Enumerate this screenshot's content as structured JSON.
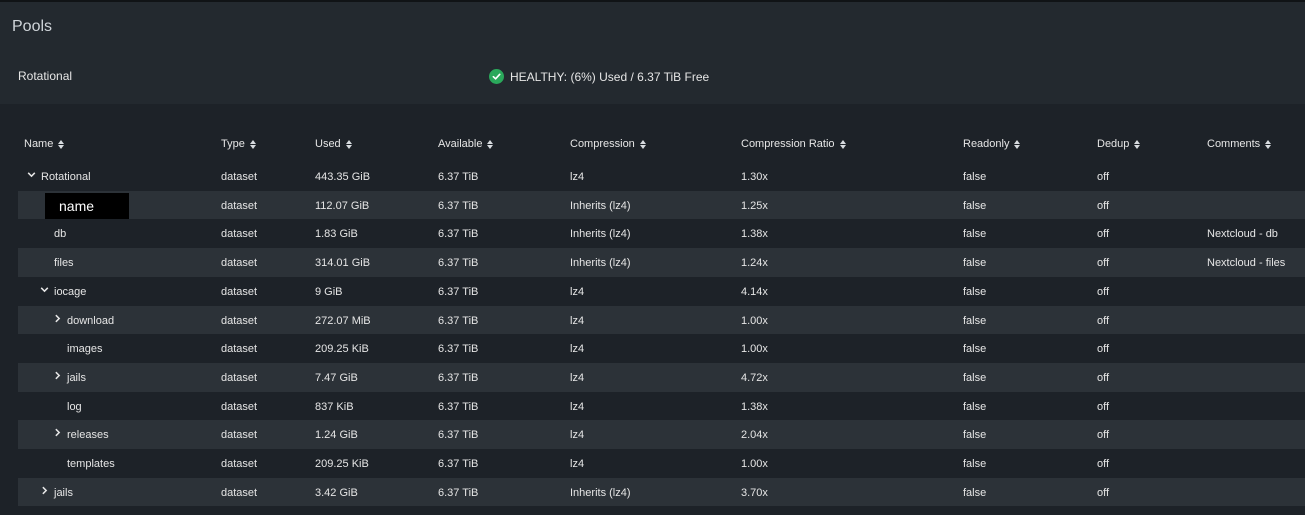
{
  "page": {
    "title": "Pools"
  },
  "pool": {
    "name": "Rotational",
    "status": "HEALTHY: (6%) Used / 6.37 TiB Free",
    "status_color": "#2aa85b"
  },
  "columns": [
    "Name",
    "Type",
    "Used",
    "Available",
    "Compression",
    "Compression Ratio",
    "Readonly",
    "Dedup",
    "Comments"
  ],
  "rows": [
    {
      "name": "Rotational",
      "chevron": "down",
      "type": "dataset",
      "used": "443.35 GiB",
      "available": "6.37 TiB",
      "compression": "lz4",
      "ratio": "1.30x",
      "readonly": "false",
      "dedup": "off",
      "comments": ""
    },
    {
      "name": "name",
      "redacted": true,
      "type": "dataset",
      "used": "112.07 GiB",
      "available": "6.37 TiB",
      "compression": "Inherits (lz4)",
      "ratio": "1.25x",
      "readonly": "false",
      "dedup": "off",
      "comments": ""
    },
    {
      "name": "db",
      "type": "dataset",
      "used": "1.83 GiB",
      "available": "6.37 TiB",
      "compression": "Inherits (lz4)",
      "ratio": "1.38x",
      "readonly": "false",
      "dedup": "off",
      "comments": "Nextcloud - db"
    },
    {
      "name": "files",
      "type": "dataset",
      "used": "314.01 GiB",
      "available": "6.37 TiB",
      "compression": "Inherits (lz4)",
      "ratio": "1.24x",
      "readonly": "false",
      "dedup": "off",
      "comments": "Nextcloud - files"
    },
    {
      "name": "iocage",
      "chevron": "down",
      "type": "dataset",
      "used": "9 GiB",
      "available": "6.37 TiB",
      "compression": "lz4",
      "ratio": "4.14x",
      "readonly": "false",
      "dedup": "off",
      "comments": ""
    },
    {
      "name": "download",
      "chevron": "right",
      "type": "dataset",
      "used": "272.07 MiB",
      "available": "6.37 TiB",
      "compression": "lz4",
      "ratio": "1.00x",
      "readonly": "false",
      "dedup": "off",
      "comments": ""
    },
    {
      "name": "images",
      "type": "dataset",
      "used": "209.25 KiB",
      "available": "6.37 TiB",
      "compression": "lz4",
      "ratio": "1.00x",
      "readonly": "false",
      "dedup": "off",
      "comments": ""
    },
    {
      "name": "jails",
      "chevron": "right",
      "type": "dataset",
      "used": "7.47 GiB",
      "available": "6.37 TiB",
      "compression": "lz4",
      "ratio": "4.72x",
      "readonly": "false",
      "dedup": "off",
      "comments": ""
    },
    {
      "name": "log",
      "type": "dataset",
      "used": "837 KiB",
      "available": "6.37 TiB",
      "compression": "lz4",
      "ratio": "1.38x",
      "readonly": "false",
      "dedup": "off",
      "comments": ""
    },
    {
      "name": "releases",
      "chevron": "right",
      "type": "dataset",
      "used": "1.24 GiB",
      "available": "6.37 TiB",
      "compression": "lz4",
      "ratio": "2.04x",
      "readonly": "false",
      "dedup": "off",
      "comments": ""
    },
    {
      "name": "templates",
      "type": "dataset",
      "used": "209.25 KiB",
      "available": "6.37 TiB",
      "compression": "lz4",
      "ratio": "1.00x",
      "readonly": "false",
      "dedup": "off",
      "comments": ""
    },
    {
      "name": "jails",
      "chevron": "right",
      "type": "dataset",
      "used": "3.42 GiB",
      "available": "6.37 TiB",
      "compression": "Inherits (lz4)",
      "ratio": "3.70x",
      "readonly": "false",
      "dedup": "off",
      "comments": ""
    }
  ]
}
